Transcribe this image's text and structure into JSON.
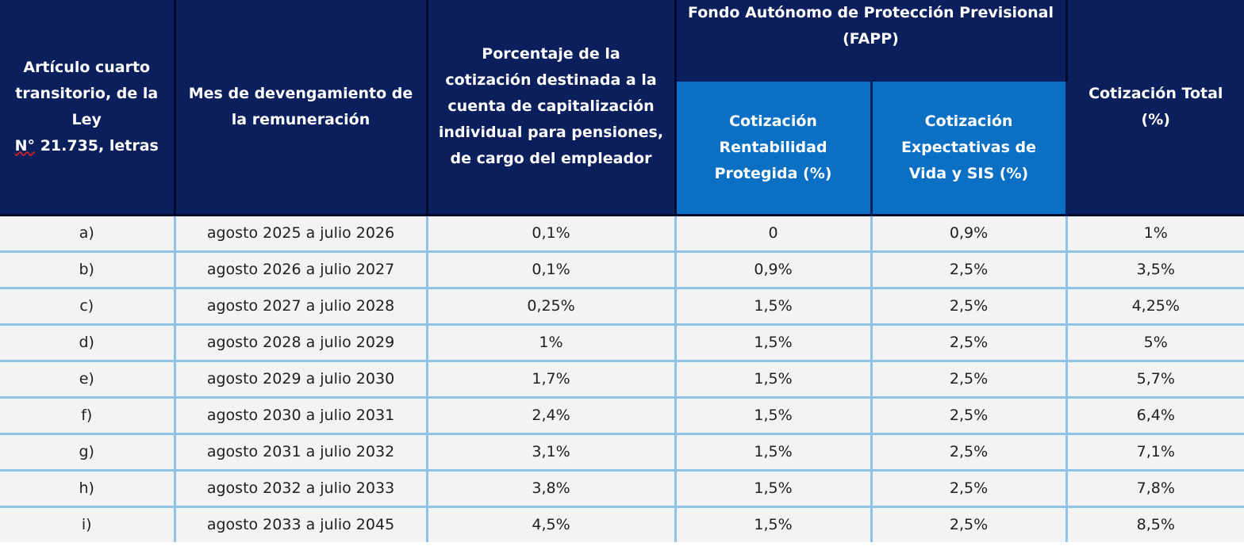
{
  "header": {
    "col1_line1": "Artículo cuarto transitorio, de la Ley",
    "col1_law_prefix": "N°",
    "col1_line2": "21.735, letras",
    "col2": "Mes de devengamiento de la remuneración",
    "col3": "Porcentaje de la cotización destinada a la cuenta de capitalización individual para pensiones, de cargo del empleador",
    "fapp_group": "Fondo Autónomo de Protección Previsional (FAPP)",
    "fapp_sub1": "Cotización Rentabilidad Protegida (%)",
    "fapp_sub2": "Cotización Expectativas de Vida y SIS (%)",
    "total": "Cotización Total (%)"
  },
  "rows": [
    {
      "letra": "a)",
      "mes": "agosto 2025 a julio 2026",
      "porcentaje": "0,1%",
      "rentabilidad": "0",
      "expectativas": "0,9%",
      "total": "1%"
    },
    {
      "letra": "b)",
      "mes": "agosto 2026 a julio 2027",
      "porcentaje": "0,1%",
      "rentabilidad": "0,9%",
      "expectativas": "2,5%",
      "total": "3,5%"
    },
    {
      "letra": "c)",
      "mes": "agosto 2027 a julio 2028",
      "porcentaje": "0,25%",
      "rentabilidad": "1,5%",
      "expectativas": "2,5%",
      "total": "4,25%"
    },
    {
      "letra": "d)",
      "mes": "agosto 2028 a julio 2029",
      "porcentaje": "1%",
      "rentabilidad": "1,5%",
      "expectativas": "2,5%",
      "total": "5%"
    },
    {
      "letra": "e)",
      "mes": "agosto 2029 a julio 2030",
      "porcentaje": "1,7%",
      "rentabilidad": "1,5%",
      "expectativas": "2,5%",
      "total": "5,7%"
    },
    {
      "letra": "f)",
      "mes": "agosto 2030 a julio 2031",
      "porcentaje": "2,4%",
      "rentabilidad": "1,5%",
      "expectativas": "2,5%",
      "total": "6,4%"
    },
    {
      "letra": "g)",
      "mes": "agosto 2031 a julio 2032",
      "porcentaje": "3,1%",
      "rentabilidad": "1,5%",
      "expectativas": "2,5%",
      "total": "7,1%"
    },
    {
      "letra": "h)",
      "mes": "agosto 2032 a julio 2033",
      "porcentaje": "3,8%",
      "rentabilidad": "1,5%",
      "expectativas": "2,5%",
      "total": "7,8%"
    },
    {
      "letra": "i)",
      "mes": "agosto 2033 a julio 2045",
      "porcentaje": "4,5%",
      "rentabilidad": "1,5%",
      "expectativas": "2,5%",
      "total": "8,5%"
    }
  ],
  "colors": {
    "header_navy": "#0a1f5c",
    "header_blue": "#0b70c4",
    "row_bg": "#f3f3f3",
    "grid_light_blue": "#8fc4e6"
  }
}
